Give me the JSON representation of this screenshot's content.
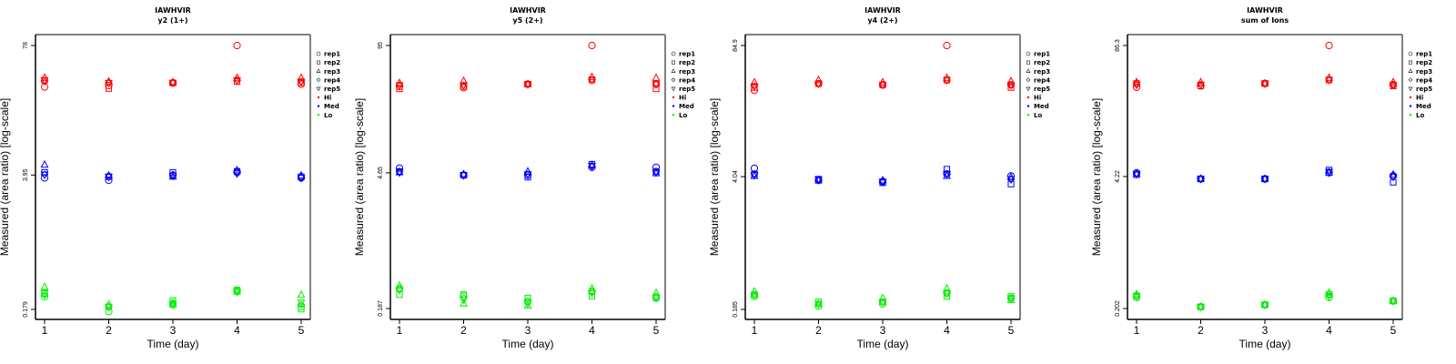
{
  "colors": {
    "Hi": "#ff0000",
    "Med": "#0000ff",
    "Lo": "#00ee00",
    "frame_dark": "#000000",
    "frame_light": "#808080"
  },
  "legend": {
    "entries": [
      {
        "label": "rep1",
        "symbol": "circle"
      },
      {
        "label": "rep2",
        "symbol": "square"
      },
      {
        "label": "rep3",
        "symbol": "triangle-up"
      },
      {
        "label": "rep4",
        "symbol": "diamond"
      },
      {
        "label": "rep5",
        "symbol": "triangle-down"
      },
      {
        "label": "Hi",
        "symbol": "dot",
        "color": "#ff0000"
      },
      {
        "label": "Med",
        "symbol": "dot",
        "color": "#0000ff"
      },
      {
        "label": "Lo",
        "symbol": "dot",
        "color": "#00ee00"
      }
    ]
  },
  "chart_data": [
    {
      "type": "scatter",
      "title": "IAWHVIR",
      "subtitle": "y2 (1+)",
      "xlabel": "Time (day)",
      "ylabel": "Measured (area ratio) [log-scale]",
      "yscale": "log",
      "x": [
        1,
        2,
        3,
        4,
        5
      ],
      "x_ticks": [
        "1",
        "2",
        "3",
        "4",
        "5"
      ],
      "y_ticks": [
        {
          "value": 78,
          "label": "78"
        },
        {
          "value": 3.95,
          "label": "3.95"
        },
        {
          "value": 0.179,
          "label": "0.179"
        }
      ],
      "ylim": [
        0.165,
        110
      ],
      "series": [
        {
          "group": "Hi",
          "rep": "rep1",
          "values": [
            30.0,
            31.0,
            33.0,
            78.0,
            32.0
          ]
        },
        {
          "group": "Hi",
          "rep": "rep2",
          "values": [
            35.0,
            29.0,
            33.0,
            34.0,
            33.0
          ]
        },
        {
          "group": "Hi",
          "rep": "rep3",
          "values": [
            37.0,
            34.0,
            33.5,
            37.0,
            37.0
          ]
        },
        {
          "group": "Hi",
          "rep": "rep4",
          "values": [
            34.0,
            33.0,
            33.0,
            35.0,
            34.0
          ]
        },
        {
          "group": "Hi",
          "rep": "rep5",
          "values": [
            35.0,
            33.0,
            33.0,
            35.0,
            34.0
          ]
        },
        {
          "group": "Med",
          "rep": "rep1",
          "values": [
            3.7,
            3.5,
            3.9,
            4.2,
            3.7
          ]
        },
        {
          "group": "Med",
          "rep": "rep2",
          "values": [
            4.2,
            3.8,
            4.2,
            4.3,
            3.8
          ]
        },
        {
          "group": "Med",
          "rep": "rep3",
          "values": [
            5.0,
            3.9,
            3.8,
            4.4,
            3.9
          ]
        },
        {
          "group": "Med",
          "rep": "rep4",
          "values": [
            4.0,
            3.8,
            4.0,
            4.2,
            3.8
          ]
        },
        {
          "group": "Med",
          "rep": "rep5",
          "values": [
            4.0,
            3.8,
            3.9,
            4.1,
            3.7
          ]
        },
        {
          "group": "Lo",
          "rep": "rep1",
          "values": [
            0.24,
            0.17,
            0.2,
            0.27,
            0.19
          ]
        },
        {
          "group": "Lo",
          "rep": "rep2",
          "values": [
            0.26,
            0.19,
            0.22,
            0.28,
            0.18
          ]
        },
        {
          "group": "Lo",
          "rep": "rep3",
          "values": [
            0.3,
            0.2,
            0.2,
            0.27,
            0.25
          ]
        },
        {
          "group": "Lo",
          "rep": "rep4",
          "values": [
            0.25,
            0.19,
            0.21,
            0.28,
            0.2
          ]
        },
        {
          "group": "Lo",
          "rep": "rep5",
          "values": [
            0.26,
            0.19,
            0.2,
            0.27,
            0.21
          ]
        }
      ]
    },
    {
      "type": "scatter",
      "title": "IAWHVIR",
      "subtitle": "y5 (2+)",
      "xlabel": "Time (day)",
      "ylabel": "Measured (area ratio) [log-scale]",
      "yscale": "log",
      "x": [
        1,
        2,
        3,
        4,
        5
      ],
      "x_ticks": [
        "1",
        "2",
        "3",
        "4",
        "5"
      ],
      "y_ticks": [
        {
          "value": 95,
          "label": "95"
        },
        {
          "value": 4.65,
          "label": "4.65"
        },
        {
          "value": 0.187,
          "label": "0.187"
        }
      ],
      "ylim": [
        0.172,
        134
      ],
      "series": [
        {
          "group": "Hi",
          "rep": "rep1",
          "values": [
            36.0,
            35.0,
            38.0,
            95.0,
            38.0
          ]
        },
        {
          "group": "Hi",
          "rep": "rep2",
          "values": [
            34.0,
            36.0,
            38.0,
            42.0,
            34.0
          ]
        },
        {
          "group": "Hi",
          "rep": "rep3",
          "values": [
            39.0,
            41.0,
            38.0,
            45.0,
            44.0
          ]
        },
        {
          "group": "Hi",
          "rep": "rep4",
          "values": [
            37.0,
            37.0,
            38.0,
            42.0,
            38.0
          ]
        },
        {
          "group": "Hi",
          "rep": "rep5",
          "values": [
            37.0,
            37.0,
            38.0,
            42.0,
            38.0
          ]
        },
        {
          "group": "Med",
          "rep": "rep1",
          "values": [
            5.2,
            4.4,
            4.4,
            5.3,
            5.3
          ]
        },
        {
          "group": "Med",
          "rep": "rep2",
          "values": [
            4.8,
            4.4,
            4.2,
            5.7,
            4.8
          ]
        },
        {
          "group": "Med",
          "rep": "rep3",
          "values": [
            4.7,
            4.5,
            4.8,
            5.6,
            4.6
          ]
        },
        {
          "group": "Med",
          "rep": "rep4",
          "values": [
            4.8,
            4.4,
            4.5,
            5.4,
            4.8
          ]
        },
        {
          "group": "Med",
          "rep": "rep5",
          "values": [
            4.7,
            4.4,
            4.5,
            5.5,
            4.7
          ]
        },
        {
          "group": "Lo",
          "rep": "rep1",
          "values": [
            0.3,
            0.25,
            0.22,
            0.28,
            0.24
          ]
        },
        {
          "group": "Lo",
          "rep": "rep2",
          "values": [
            0.26,
            0.26,
            0.24,
            0.25,
            0.24
          ]
        },
        {
          "group": "Lo",
          "rep": "rep3",
          "values": [
            0.32,
            0.21,
            0.2,
            0.3,
            0.27
          ]
        },
        {
          "group": "Lo",
          "rep": "rep4",
          "values": [
            0.3,
            0.24,
            0.22,
            0.28,
            0.25
          ]
        },
        {
          "group": "Lo",
          "rep": "rep5",
          "values": [
            0.29,
            0.23,
            0.21,
            0.27,
            0.24
          ]
        }
      ]
    },
    {
      "type": "scatter",
      "title": "IAWHVIR",
      "subtitle": "y4 (2+)",
      "xlabel": "Time (day)",
      "ylabel": "Measured (area ratio) [log-scale]",
      "yscale": "log",
      "x": [
        1,
        2,
        3,
        4,
        5
      ],
      "x_ticks": [
        "1",
        "2",
        "3",
        "4",
        "5"
      ],
      "y_ticks": [
        {
          "value": 84.9,
          "label": "84.9"
        },
        {
          "value": 4.04,
          "label": "4.04"
        },
        {
          "value": 0.185,
          "label": "0.185"
        }
      ],
      "ylim": [
        0.17,
        120
      ],
      "series": [
        {
          "group": "Hi",
          "rep": "rep1",
          "values": [
            30.0,
            35.0,
            34.0,
            84.9,
            34.0
          ]
        },
        {
          "group": "Hi",
          "rep": "rep2",
          "values": [
            32.0,
            35.0,
            34.0,
            38.0,
            32.0
          ]
        },
        {
          "group": "Hi",
          "rep": "rep3",
          "values": [
            36.0,
            38.0,
            36.0,
            40.0,
            37.0
          ]
        },
        {
          "group": "Hi",
          "rep": "rep4",
          "values": [
            33.0,
            35.0,
            34.0,
            38.0,
            34.0
          ]
        },
        {
          "group": "Hi",
          "rep": "rep5",
          "values": [
            33.0,
            35.0,
            34.0,
            38.0,
            34.0
          ]
        },
        {
          "group": "Med",
          "rep": "rep1",
          "values": [
            4.9,
            3.7,
            3.6,
            4.3,
            4.1
          ]
        },
        {
          "group": "Med",
          "rep": "rep2",
          "values": [
            4.3,
            3.8,
            3.5,
            4.8,
            3.4
          ]
        },
        {
          "group": "Med",
          "rep": "rep3",
          "values": [
            4.1,
            3.7,
            3.7,
            4.1,
            4.0
          ]
        },
        {
          "group": "Med",
          "rep": "rep4",
          "values": [
            4.3,
            3.8,
            3.6,
            4.3,
            3.8
          ]
        },
        {
          "group": "Med",
          "rep": "rep5",
          "values": [
            4.2,
            3.8,
            3.6,
            4.3,
            3.8
          ]
        },
        {
          "group": "Lo",
          "rep": "rep1",
          "values": [
            0.25,
            0.2,
            0.21,
            0.27,
            0.24
          ]
        },
        {
          "group": "Lo",
          "rep": "rep2",
          "values": [
            0.26,
            0.22,
            0.22,
            0.25,
            0.25
          ]
        },
        {
          "group": "Lo",
          "rep": "rep3",
          "values": [
            0.28,
            0.21,
            0.24,
            0.3,
            0.23
          ]
        },
        {
          "group": "Lo",
          "rep": "rep4",
          "values": [
            0.26,
            0.21,
            0.22,
            0.27,
            0.24
          ]
        },
        {
          "group": "Lo",
          "rep": "rep5",
          "values": [
            0.26,
            0.21,
            0.22,
            0.27,
            0.24
          ]
        }
      ]
    },
    {
      "type": "scatter",
      "title": "IAWHVIR",
      "subtitle": "sum of Ions",
      "xlabel": "Time (day)",
      "ylabel": "Measured (area ratio) [log-scale]",
      "yscale": "log",
      "x": [
        1,
        2,
        3,
        4,
        5
      ],
      "x_ticks": [
        "1",
        "2",
        "3",
        "4",
        "5"
      ],
      "y_ticks": [
        {
          "value": 86.3,
          "label": "86.3"
        },
        {
          "value": 4.22,
          "label": "4.22"
        },
        {
          "value": 0.202,
          "label": "0.202"
        }
      ],
      "ylim": [
        0.186,
        122
      ],
      "series": [
        {
          "group": "Hi",
          "rep": "rep1",
          "values": [
            33.0,
            34.0,
            36.0,
            86.3,
            35.0
          ]
        },
        {
          "group": "Hi",
          "rep": "rep2",
          "values": [
            36.0,
            34.0,
            36.0,
            39.0,
            34.0
          ]
        },
        {
          "group": "Hi",
          "rep": "rep3",
          "values": [
            37.0,
            37.0,
            36.0,
            41.0,
            37.0
          ]
        },
        {
          "group": "Hi",
          "rep": "rep4",
          "values": [
            35.0,
            35.0,
            36.0,
            39.0,
            35.0
          ]
        },
        {
          "group": "Hi",
          "rep": "rep5",
          "values": [
            35.0,
            35.0,
            36.0,
            39.0,
            35.0
          ]
        },
        {
          "group": "Med",
          "rep": "rep1",
          "values": [
            4.6,
            4.0,
            4.0,
            4.6,
            4.3
          ]
        },
        {
          "group": "Med",
          "rep": "rep2",
          "values": [
            4.4,
            4.0,
            4.0,
            4.9,
            3.7
          ]
        },
        {
          "group": "Med",
          "rep": "rep3",
          "values": [
            4.5,
            4.0,
            4.0,
            4.6,
            4.4
          ]
        },
        {
          "group": "Med",
          "rep": "rep4",
          "values": [
            4.5,
            4.0,
            4.0,
            4.7,
            4.2
          ]
        },
        {
          "group": "Med",
          "rep": "rep5",
          "values": [
            4.5,
            4.0,
            4.0,
            4.7,
            4.2
          ]
        },
        {
          "group": "Lo",
          "rep": "rep1",
          "values": [
            0.26,
            0.21,
            0.22,
            0.26,
            0.24
          ]
        },
        {
          "group": "Lo",
          "rep": "rep2",
          "values": [
            0.27,
            0.21,
            0.22,
            0.28,
            0.24
          ]
        },
        {
          "group": "Lo",
          "rep": "rep3",
          "values": [
            0.28,
            0.21,
            0.22,
            0.29,
            0.24
          ]
        },
        {
          "group": "Lo",
          "rep": "rep4",
          "values": [
            0.27,
            0.21,
            0.22,
            0.27,
            0.24
          ]
        },
        {
          "group": "Lo",
          "rep": "rep5",
          "values": [
            0.27,
            0.21,
            0.22,
            0.27,
            0.24
          ]
        }
      ]
    }
  ]
}
